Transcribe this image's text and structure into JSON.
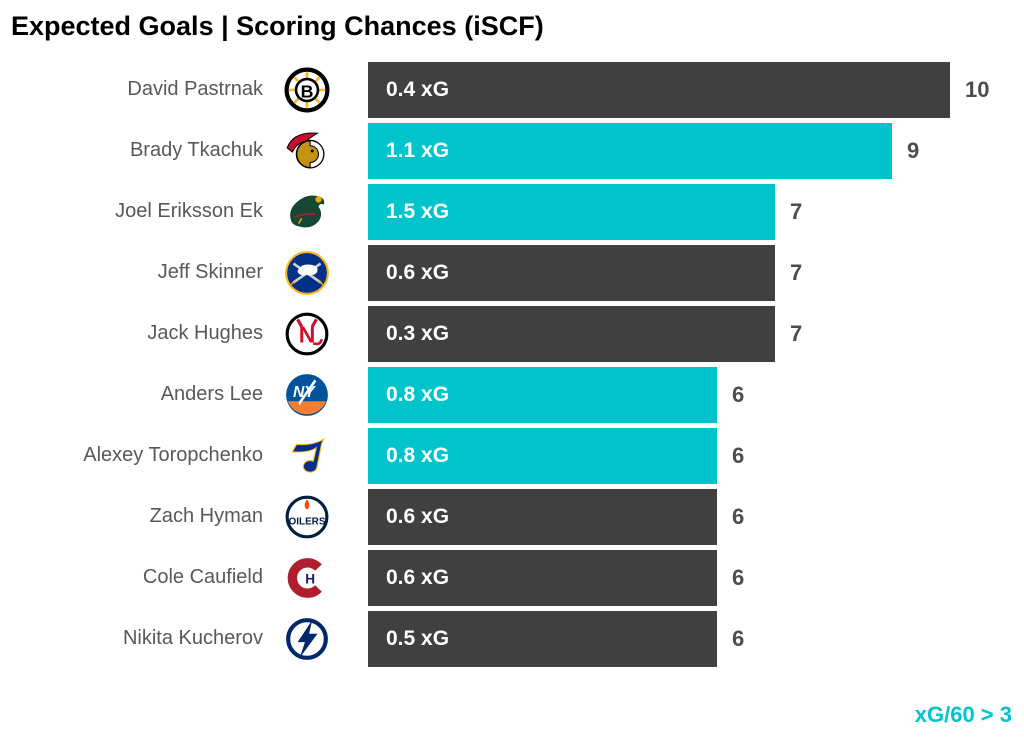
{
  "title": "Expected Goals | Scoring Chances (iSCF)",
  "footer": {
    "note": "xG/60 > 3"
  },
  "colors": {
    "background": "#FFFFFF",
    "bar_dark": "#404040",
    "bar_teal": "#00C4CC",
    "title_text": "#000000",
    "player_name_text": "#595959",
    "count_text": "#4D4D4D",
    "bar_label_text": "#FFFFFF",
    "footer_text": "#00C4CC"
  },
  "chart_data": {
    "type": "bar",
    "orientation": "horizontal",
    "title": "Expected Goals | Scoring Chances (iSCF)",
    "value_axis": "iSCF (individual scoring chances for)",
    "xlim": [
      0,
      10
    ],
    "legend_note": "xG/60 > 3 shown in teal",
    "rows": [
      {
        "name": "David Pastrnak",
        "team_icon": "bruins-logo",
        "xg": 0.4,
        "xg_label": "0.4 xG",
        "iscf": 10,
        "color": "dark"
      },
      {
        "name": "Brady Tkachuk",
        "team_icon": "senators-logo",
        "xg": 1.1,
        "xg_label": "1.1 xG",
        "iscf": 9,
        "color": "teal"
      },
      {
        "name": "Joel Eriksson Ek",
        "team_icon": "wild-logo",
        "xg": 1.5,
        "xg_label": "1.5 xG",
        "iscf": 7,
        "color": "teal"
      },
      {
        "name": "Jeff Skinner",
        "team_icon": "sabres-logo",
        "xg": 0.6,
        "xg_label": "0.6 xG",
        "iscf": 7,
        "color": "dark"
      },
      {
        "name": "Jack Hughes",
        "team_icon": "devils-logo",
        "xg": 0.3,
        "xg_label": "0.3 xG",
        "iscf": 7,
        "color": "dark"
      },
      {
        "name": "Anders Lee",
        "team_icon": "islanders-logo",
        "xg": 0.8,
        "xg_label": "0.8 xG",
        "iscf": 6,
        "color": "teal"
      },
      {
        "name": "Alexey Toropchenko",
        "team_icon": "blues-logo",
        "xg": 0.8,
        "xg_label": "0.8 xG",
        "iscf": 6,
        "color": "teal"
      },
      {
        "name": "Zach Hyman",
        "team_icon": "oilers-logo",
        "xg": 0.6,
        "xg_label": "0.6 xG",
        "iscf": 6,
        "color": "dark"
      },
      {
        "name": "Cole Caufield",
        "team_icon": "canadiens-logo",
        "xg": 0.6,
        "xg_label": "0.6 xG",
        "iscf": 6,
        "color": "dark"
      },
      {
        "name": "Nikita Kucherov",
        "team_icon": "lightning-logo",
        "xg": 0.5,
        "xg_label": "0.5 xG",
        "iscf": 6,
        "color": "dark"
      }
    ]
  }
}
